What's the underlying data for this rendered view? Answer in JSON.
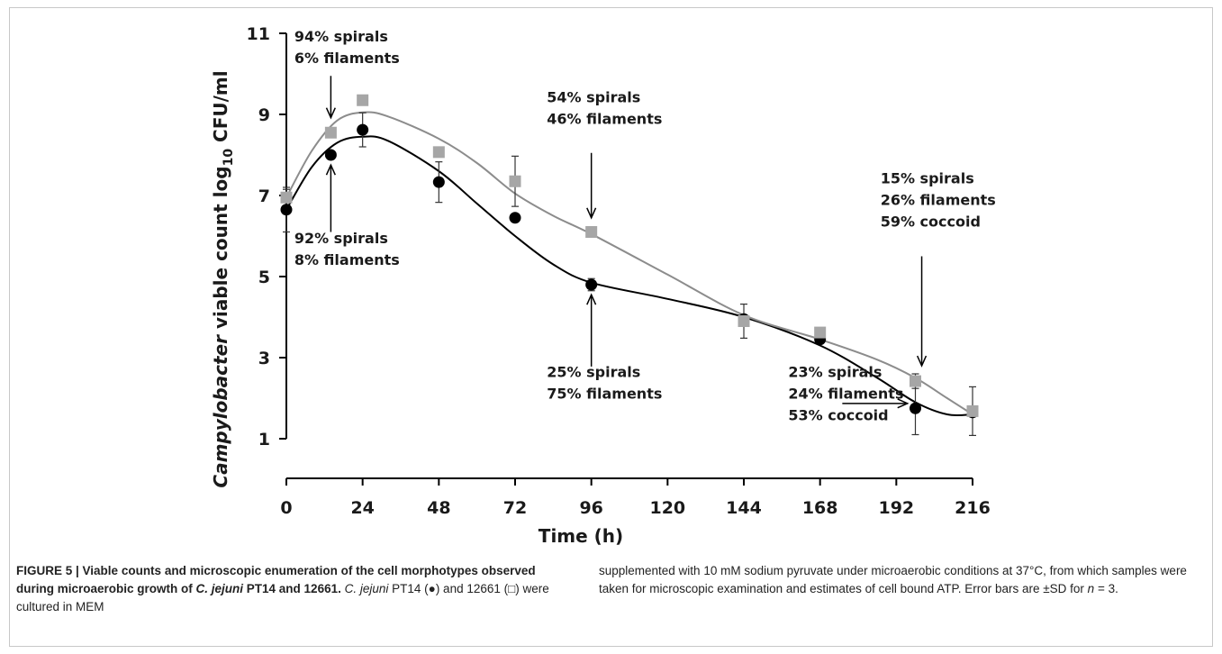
{
  "chart_data": {
    "type": "scatter",
    "xlabel": "Time (h)",
    "ylabel_main": "Campylobacter",
    "ylabel_rest": " viable count log",
    "ylabel_sub": "10",
    "ylabel_tail": " CFU/ml",
    "xlim": [
      0,
      216
    ],
    "ylim": [
      1,
      11
    ],
    "xticks": [
      0,
      24,
      48,
      72,
      96,
      120,
      144,
      168,
      192,
      216
    ],
    "yticks": [
      1,
      3,
      5,
      7,
      9,
      11
    ],
    "grid": false,
    "series": [
      {
        "key": "pt14",
        "marker": "circle",
        "color": "#000000",
        "points": [
          {
            "x": 0,
            "y": 6.65,
            "err": 0.55
          },
          {
            "x": 14,
            "y": 8.0,
            "err": 0.0
          },
          {
            "x": 24,
            "y": 8.62,
            "err": 0.42
          },
          {
            "x": 48,
            "y": 7.33,
            "err": 0.5
          },
          {
            "x": 72,
            "y": 6.45,
            "err": 0.0
          },
          {
            "x": 96,
            "y": 4.8,
            "err": 0.15
          },
          {
            "x": 144,
            "y": 3.95,
            "err": 0.0
          },
          {
            "x": 168,
            "y": 3.45,
            "err": 0.0
          },
          {
            "x": 198,
            "y": 1.75,
            "err": 0.65
          },
          {
            "x": 216,
            "y": 1.65,
            "err": 0.0
          }
        ],
        "curve": [
          [
            0,
            6.65
          ],
          [
            8,
            7.7
          ],
          [
            16,
            8.3
          ],
          [
            24,
            8.45
          ],
          [
            32,
            8.35
          ],
          [
            48,
            7.6
          ],
          [
            60,
            6.8
          ],
          [
            72,
            6.0
          ],
          [
            84,
            5.3
          ],
          [
            96,
            4.85
          ],
          [
            120,
            4.45
          ],
          [
            144,
            4.0
          ],
          [
            168,
            3.3
          ],
          [
            186,
            2.5
          ],
          [
            198,
            1.9
          ],
          [
            208,
            1.6
          ],
          [
            216,
            1.6
          ]
        ]
      },
      {
        "key": "12661",
        "marker": "square",
        "color": "#a6a6a6",
        "points": [
          {
            "x": 0,
            "y": 6.95,
            "err": 0.2
          },
          {
            "x": 14,
            "y": 8.55,
            "err": 0.0
          },
          {
            "x": 24,
            "y": 9.35,
            "err": 0.0
          },
          {
            "x": 48,
            "y": 8.07,
            "err": 0.0
          },
          {
            "x": 72,
            "y": 7.35,
            "err": 0.62
          },
          {
            "x": 96,
            "y": 6.1,
            "err": 0.0
          },
          {
            "x": 144,
            "y": 3.9,
            "err": 0.42
          },
          {
            "x": 168,
            "y": 3.62,
            "err": 0.0
          },
          {
            "x": 198,
            "y": 2.42,
            "err": 0.18
          },
          {
            "x": 216,
            "y": 1.68,
            "err": 0.6
          }
        ],
        "curve": [
          [
            0,
            6.95
          ],
          [
            8,
            8.1
          ],
          [
            16,
            8.85
          ],
          [
            24,
            9.05
          ],
          [
            32,
            8.95
          ],
          [
            48,
            8.4
          ],
          [
            60,
            7.8
          ],
          [
            72,
            7.05
          ],
          [
            84,
            6.5
          ],
          [
            96,
            6.05
          ],
          [
            120,
            5.05
          ],
          [
            144,
            4.05
          ],
          [
            168,
            3.45
          ],
          [
            186,
            2.95
          ],
          [
            198,
            2.5
          ],
          [
            208,
            2.0
          ],
          [
            216,
            1.6
          ]
        ]
      }
    ],
    "annotations": [
      {
        "key": "a1",
        "lines": [
          "94% spirals",
          "6% filaments"
        ],
        "text_x": 2.5,
        "text_y": 10.8,
        "arrow": [
          [
            14,
            9.95
          ],
          [
            14,
            8.92
          ]
        ]
      },
      {
        "key": "a2",
        "lines": [
          "92% spirals",
          "8% filaments"
        ],
        "text_x": 2.5,
        "text_y": 5.82,
        "arrow": [
          [
            14,
            6.1
          ],
          [
            14,
            7.75
          ]
        ]
      },
      {
        "key": "a3",
        "lines": [
          "54% spirals",
          "46% filaments"
        ],
        "text_x": 82,
        "text_y": 9.3,
        "arrow": [
          [
            96,
            8.05
          ],
          [
            96,
            6.45
          ]
        ]
      },
      {
        "key": "a4",
        "lines": [
          "25% spirals",
          "75% filaments"
        ],
        "text_x": 82,
        "text_y": 2.52,
        "arrow": [
          [
            96,
            2.78
          ],
          [
            96,
            4.55
          ]
        ]
      },
      {
        "key": "a5",
        "lines": [
          "15% spirals",
          "26% filaments",
          "59% coccoid"
        ],
        "text_x": 187,
        "text_y": 7.3,
        "arrow": [
          [
            200,
            5.5
          ],
          [
            200,
            2.8
          ]
        ]
      },
      {
        "key": "a6",
        "lines": [
          "23% spirals",
          "24% filaments",
          "53% coccoid"
        ],
        "text_x": 158,
        "text_y": 2.52,
        "arrow": [
          [
            175,
            1.87
          ],
          [
            195.5,
            1.87
          ]
        ]
      }
    ]
  },
  "caption": {
    "label": "FIGURE 5 | Viable counts and microscopic enumeration of the cell morphotypes observed during microaerobic growth of ",
    "label_species": "C. jejuni",
    "label_tail": " PT14 and 12661.",
    "species_italic": "C. jejuni",
    "body_a": " PT14 (",
    "symbol_circle": "●",
    "body_b": ") and 12661 (",
    "symbol_square": "□",
    "body_c": ") were cultured in MEM",
    "right": "supplemented with 10 mM sodium pyruvate under microaerobic conditions at 37°C, from which samples were taken for microscopic examination and estimates of cell bound ATP. Error bars are ±SD for ",
    "right_n": "n",
    "right_tail": " = 3."
  }
}
